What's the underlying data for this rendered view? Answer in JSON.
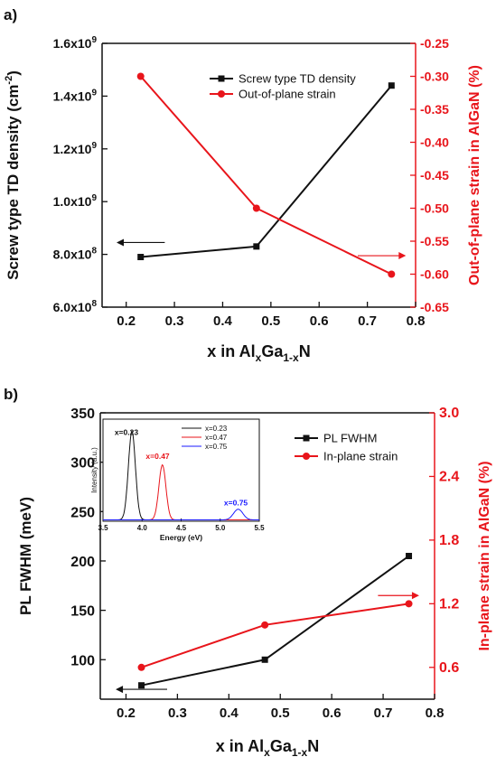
{
  "colors": {
    "black": "#111111",
    "red": "#e8151b",
    "blue": "#1a1aff"
  },
  "chart_data": [
    {
      "panel_label": "a)",
      "type": "line",
      "xlabel": {
        "main": "x in Al",
        "sub1": "x",
        "mid": "Ga",
        "sub2": "1-x",
        "end": "N"
      },
      "xlim": [
        0.15,
        0.8
      ],
      "xticks": [
        0.2,
        0.3,
        0.4,
        0.5,
        0.6,
        0.7,
        0.8
      ],
      "xtick_labels": [
        "0.2",
        "0.3",
        "0.4",
        "0.5",
        "0.6",
        "0.7",
        "0.8"
      ],
      "y_left": {
        "label": {
          "main": "Screw type TD density (cm",
          "sup": "-2",
          "end": ")"
        },
        "lim": [
          600000000.0,
          1600000000.0
        ],
        "ticks": [
          600000000.0,
          800000000.0,
          1000000000.0,
          1200000000.0,
          1400000000.0,
          1600000000.0
        ],
        "tick_mantissas": [
          "6.0x10",
          "8.0x10",
          "1.0x10",
          "1.2x10",
          "1.4x10",
          "1.6x10"
        ],
        "tick_exponents": [
          "8",
          "8",
          "9",
          "9",
          "9",
          "9"
        ]
      },
      "y_right": {
        "label": "Out-of-plane strain in AlGaN (%)",
        "lim": [
          -0.65,
          -0.25
        ],
        "ticks": [
          -0.65,
          -0.6,
          -0.55,
          -0.5,
          -0.45,
          -0.4,
          -0.35,
          -0.3,
          -0.25
        ],
        "tick_labels": [
          "-0.65",
          "-0.60",
          "-0.55",
          "-0.50",
          "-0.45",
          "-0.40",
          "-0.35",
          "-0.30",
          "-0.25"
        ]
      },
      "series": [
        {
          "name": "Screw type TD density",
          "axis": "left",
          "color": "#111111",
          "marker": "square",
          "x": [
            0.23,
            0.47,
            0.75
          ],
          "y": [
            790000000.0,
            830000000.0,
            1440000000.0
          ]
        },
        {
          "name": "Out-of-plane strain",
          "axis": "right",
          "color": "#e8151b",
          "marker": "circle",
          "x": [
            0.23,
            0.47,
            0.75
          ],
          "y": [
            -0.3,
            -0.5,
            -0.6
          ]
        }
      ],
      "legend_position": "top-right",
      "axis_arrows": [
        {
          "color": "#111111",
          "direction": "left",
          "points_to": "left axis",
          "from": [
            0.28,
            845000000.0
          ],
          "to": [
            0.18,
            845000000.0
          ]
        },
        {
          "color": "#e8151b",
          "direction": "right",
          "points_to": "right axis",
          "from": [
            0.68,
            795000000.0
          ],
          "to": [
            0.78,
            795000000.0
          ]
        }
      ]
    },
    {
      "panel_label": "b)",
      "type": "line",
      "xlabel": {
        "main": "x in Al",
        "sub1": "x",
        "mid": "Ga",
        "sub2": "1-x",
        "end": "N"
      },
      "xlim": [
        0.15,
        0.8
      ],
      "xticks": [
        0.2,
        0.3,
        0.4,
        0.5,
        0.6,
        0.7,
        0.8
      ],
      "xtick_labels": [
        "0.2",
        "0.3",
        "0.4",
        "0.5",
        "0.6",
        "0.7",
        "0.8"
      ],
      "y_left": {
        "label": "PL FWHM (meV)",
        "lim": [
          60,
          350
        ],
        "ticks": [
          100,
          150,
          200,
          250,
          300,
          350
        ],
        "tick_labels": [
          "100",
          "150",
          "200",
          "250",
          "300",
          "350"
        ]
      },
      "y_right": {
        "label": "In-plane strain in AlGaN (%)",
        "lim": [
          0.3,
          3.0
        ],
        "ticks": [
          0.6,
          1.2,
          1.8,
          2.4,
          3.0
        ],
        "tick_labels": [
          "0.6",
          "1.2",
          "1.8",
          "2.4",
          "3.0"
        ]
      },
      "series": [
        {
          "name": "PL FWHM",
          "axis": "left",
          "color": "#111111",
          "marker": "square",
          "x": [
            0.23,
            0.47,
            0.75
          ],
          "y": [
            74,
            100,
            205
          ]
        },
        {
          "name": "In-plane strain",
          "axis": "right",
          "color": "#e8151b",
          "marker": "circle",
          "x": [
            0.23,
            0.47,
            0.75
          ],
          "y": [
            0.6,
            1.0,
            1.2
          ]
        }
      ],
      "legend_position": "top-right",
      "axis_arrows": [
        {
          "color": "#111111",
          "direction": "left",
          "points_to": "left axis",
          "from": [
            0.28,
            70
          ],
          "to": [
            0.18,
            70
          ]
        },
        {
          "color": "#e8151b",
          "direction": "right",
          "points_to": "right axis",
          "from": [
            0.69,
            165
          ],
          "to": [
            0.77,
            165
          ]
        }
      ],
      "inset": {
        "type": "line",
        "xlabel": "Energy (eV)",
        "ylabel": "Intensity (a.u.)",
        "xlim": [
          3.5,
          5.5
        ],
        "xticks": [
          3.5,
          4.0,
          4.5,
          5.0,
          5.5
        ],
        "xtick_labels": [
          "3.5",
          "4.0",
          "4.5",
          "5.0",
          "5.5"
        ],
        "ylim": [
          0,
          1.15
        ],
        "series": [
          {
            "name": "x=0.23",
            "color": "#111111",
            "center": 3.87,
            "width": 0.045,
            "height": 1.0,
            "label_at": [
              3.8,
              0.97
            ]
          },
          {
            "name": "x=0.47",
            "color": "#e8151b",
            "center": 4.26,
            "width": 0.045,
            "height": 0.62,
            "label_at": [
              4.2,
              0.7
            ]
          },
          {
            "name": "x=0.75",
            "color": "#1a1aff",
            "center": 5.23,
            "width": 0.06,
            "height": 0.12,
            "label_at": [
              5.2,
              0.18
            ]
          }
        ],
        "legend_position": "top-right"
      }
    }
  ]
}
